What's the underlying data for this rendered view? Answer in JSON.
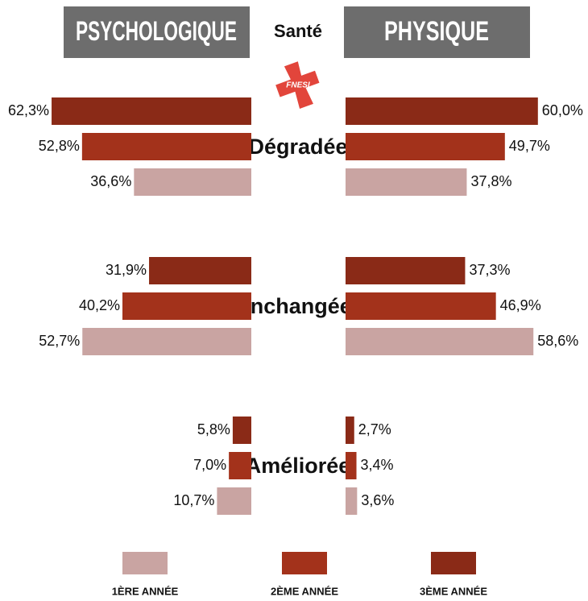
{
  "chart_data": {
    "type": "butterfly",
    "left_title": "PSYCHOLOGIQUE",
    "center_title": "Santé",
    "right_title": "PHYSIQUE",
    "logo": "FNESI",
    "categories": [
      "Dégradée",
      "Inchangée",
      "Améliorée"
    ],
    "series": [
      {
        "name": "1ÈRE ANNÉE",
        "color": "#c9a4a2",
        "left": {
          "values": [
            36.6,
            52.7,
            10.7
          ],
          "value_labels": [
            "36,6%",
            "52,7%",
            "10,7%"
          ]
        },
        "right": {
          "values": [
            37.8,
            58.6,
            3.6
          ],
          "value_labels": [
            "37,8%",
            "58,6%",
            "3,6%"
          ]
        }
      },
      {
        "name": "2ÈME ANNÉE",
        "color": "#a3321b",
        "left": {
          "values": [
            52.8,
            40.2,
            7.0
          ],
          "value_labels": [
            "52,8%",
            "40,2%",
            "7,0%"
          ]
        },
        "right": {
          "values": [
            49.7,
            46.9,
            3.4
          ],
          "value_labels": [
            "49,7%",
            "46,9%",
            "3,4%"
          ]
        }
      },
      {
        "name": "3ÈME ANNÉE",
        "color": "#8a2a17",
        "left": {
          "values": [
            62.3,
            31.9,
            5.8
          ],
          "value_labels": [
            "62,3%",
            "31,9%",
            "5,8%"
          ]
        },
        "right": {
          "values": [
            60.0,
            37.3,
            2.7
          ],
          "value_labels": [
            "60,0%",
            "37,3%",
            "2,7%"
          ]
        }
      }
    ]
  }
}
